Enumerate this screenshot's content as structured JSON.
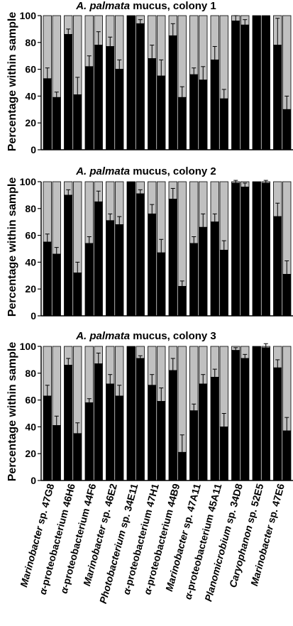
{
  "chart_data": {
    "type": "bar",
    "stacked": true,
    "ylabel": "Percentage within sample",
    "ylim": [
      0,
      100
    ],
    "yticks": [
      0,
      20,
      40,
      60,
      80,
      100
    ],
    "colors": {
      "lower": "#000000",
      "upper": "#c0c0c0"
    },
    "categories": [
      {
        "label": "Marinobacter sp. 47G8",
        "italic_prefix": "Marinobacter",
        "rest": " sp. 47G8"
      },
      {
        "label": "α-proteobacterium 46H6",
        "italic_prefix": "α",
        "rest": "-proteobacterium 46H6"
      },
      {
        "label": "α-proteobacterium 44F6",
        "italic_prefix": "α",
        "rest": "-proteobacterium 44F6"
      },
      {
        "label": "Marinobacter sp. 46E2",
        "italic_prefix": "Marinobacter",
        "rest": " sp. 46E2"
      },
      {
        "label": "Photobacterium sp. 34E11",
        "italic_prefix": "Photobacterium",
        "rest": " sp. 34E11"
      },
      {
        "label": "α-proteobacterium 47H1",
        "italic_prefix": "α",
        "rest": "-proteobacterium 47H1"
      },
      {
        "label": "α-proteobacterium 44B9",
        "italic_prefix": "α",
        "rest": "-proteobacterium 44B9"
      },
      {
        "label": "Marinobacter sp. 47A11",
        "italic_prefix": "Marinobacter",
        "rest": " sp. 47A11"
      },
      {
        "label": "α-proteobacterium 45A11",
        "italic_prefix": "α",
        "rest": "-proteobacterium 45A11"
      },
      {
        "label": "Planomicrobium sp. 34D8",
        "italic_prefix": "Planomicrobium",
        "rest": " sp. 34D8"
      },
      {
        "label": "Caryophanon sp. 52E5",
        "italic_prefix": "Caryophanon",
        "rest": " sp. 52E5"
      },
      {
        "label": "Marinobacter sp. 47E6",
        "italic_prefix": "Marinobacter",
        "rest": " sp. 47E6"
      }
    ],
    "panels": [
      {
        "title_italic": "A. palmata",
        "title_rest": " mucus, colony 1",
        "values": [
          [
            53,
            39
          ],
          [
            86,
            41
          ],
          [
            62,
            78
          ],
          [
            77,
            60
          ],
          [
            100,
            94
          ],
          [
            68,
            55
          ],
          [
            85,
            39
          ],
          [
            56,
            52
          ],
          [
            67,
            38
          ],
          [
            96,
            93
          ],
          [
            100,
            100
          ],
          [
            78,
            30
          ]
        ],
        "errors": [
          [
            8,
            4
          ],
          [
            4,
            13
          ],
          [
            8,
            10
          ],
          [
            7,
            7
          ],
          [
            0,
            3
          ],
          [
            10,
            12
          ],
          [
            9,
            8
          ],
          [
            5,
            10
          ],
          [
            10,
            7
          ],
          [
            4,
            4
          ],
          [
            0,
            0
          ],
          [
            20,
            10
          ]
        ]
      },
      {
        "title_italic": "A. palmata",
        "title_rest": " mucus, colony 2",
        "values": [
          [
            55,
            46
          ],
          [
            90,
            32
          ],
          [
            54,
            85
          ],
          [
            71,
            68
          ],
          [
            100,
            91
          ],
          [
            76,
            47
          ],
          [
            87,
            22
          ],
          [
            54,
            66
          ],
          [
            70,
            49
          ],
          [
            99,
            96
          ],
          [
            100,
            99
          ],
          [
            74,
            31
          ]
        ],
        "errors": [
          [
            6,
            5
          ],
          [
            4,
            8
          ],
          [
            5,
            8
          ],
          [
            5,
            6
          ],
          [
            0,
            3
          ],
          [
            7,
            10
          ],
          [
            8,
            4
          ],
          [
            5,
            10
          ],
          [
            6,
            7
          ],
          [
            2,
            3
          ],
          [
            0,
            2
          ],
          [
            10,
            10
          ]
        ]
      },
      {
        "title_italic": "A. palmata",
        "title_rest": " mucus, colony 3",
        "values": [
          [
            63,
            41
          ],
          [
            86,
            35
          ],
          [
            58,
            87
          ],
          [
            72,
            63
          ],
          [
            100,
            91
          ],
          [
            71,
            59
          ],
          [
            82,
            21
          ],
          [
            52,
            72
          ],
          [
            77,
            40
          ],
          [
            97,
            91
          ],
          [
            100,
            99
          ],
          [
            84,
            37
          ]
        ],
        "errors": [
          [
            8,
            7
          ],
          [
            5,
            8
          ],
          [
            3,
            8
          ],
          [
            7,
            8
          ],
          [
            0,
            2
          ],
          [
            8,
            10
          ],
          [
            9,
            13
          ],
          [
            5,
            7
          ],
          [
            6,
            10
          ],
          [
            2,
            3
          ],
          [
            0,
            3
          ],
          [
            6,
            10
          ]
        ]
      }
    ]
  }
}
